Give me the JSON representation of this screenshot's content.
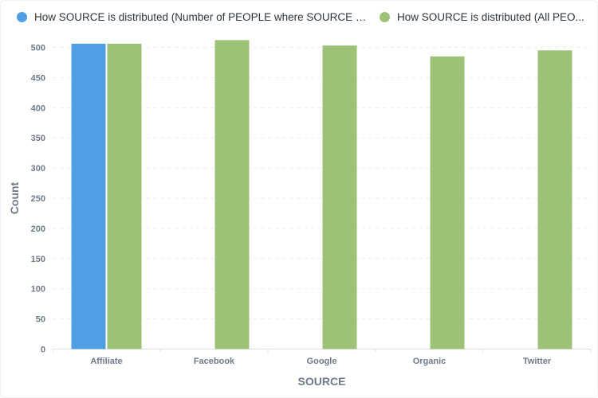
{
  "chart_data": {
    "type": "bar",
    "title": "",
    "xlabel": "SOURCE",
    "ylabel": "Count",
    "categories": [
      "Affiliate",
      "Facebook",
      "Google",
      "Organic",
      "Twitter"
    ],
    "series": [
      {
        "name": "How SOURCE is distributed (Number of PEOPLE where SOURCE is A...",
        "color": "#509ee3",
        "values": [
          506,
          null,
          null,
          null,
          null
        ]
      },
      {
        "name": "How SOURCE is distributed (All PEO...",
        "color": "#9cc177",
        "values": [
          506,
          512,
          503,
          485,
          495
        ]
      }
    ],
    "ylim": [
      0,
      500
    ],
    "yticks": [
      0,
      50,
      100,
      150,
      200,
      250,
      300,
      350,
      400,
      450,
      500
    ],
    "grid": true,
    "legend_position": "top"
  }
}
